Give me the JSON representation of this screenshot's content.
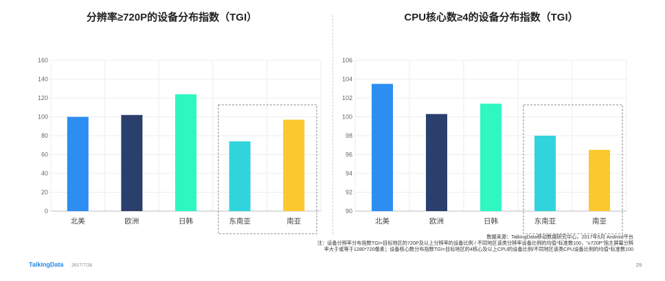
{
  "chart_data": [
    {
      "type": "bar",
      "title": "分辨率≥720P的设备分布指数（TGI）",
      "categories": [
        "北美",
        "欧洲",
        "日韩",
        "东南亚",
        "南亚"
      ],
      "values": [
        100,
        102,
        124,
        74,
        97
      ],
      "colors": [
        "#2b8ef0",
        "#2b3f6c",
        "#2ef7c0",
        "#31d4dc",
        "#fbc92e"
      ],
      "ylim": [
        0,
        160
      ],
      "yticks": [
        "0",
        "20",
        "40",
        "60",
        "80",
        "100",
        "120",
        "140",
        "160"
      ],
      "grid": true,
      "highlight_categories": [
        "东南亚",
        "南亚"
      ]
    },
    {
      "type": "bar",
      "title": "CPU核心数≥4的设备分布指数（TGI）",
      "categories": [
        "北美",
        "欧洲",
        "日韩",
        "东南亚",
        "南亚"
      ],
      "values": [
        103.5,
        100.3,
        101.4,
        98,
        96.5
      ],
      "colors": [
        "#2b8ef0",
        "#2b3f6c",
        "#2ef7c0",
        "#31d4dc",
        "#fbc92e"
      ],
      "ylim": [
        90,
        106
      ],
      "yticks": [
        "90",
        "92",
        "94",
        "96",
        "98",
        "100",
        "102",
        "104",
        "106"
      ],
      "grid": true,
      "highlight_categories": [
        "东南亚",
        "南亚"
      ]
    }
  ],
  "footer": {
    "source": "数据来源：TalkingData移动数据研究中心，2017年5月 Android平台",
    "note_line1": "注：设备分辨率分布指数TGI=目标地区的720P及以上分辨率的设备比例 / 不同地区该类分辨率设备比例的均值*标准数100，“≥720P”指主屏幕分辨",
    "note_line2": "率大于或等于1280*720像素；设备核心数分布指数TGI=目标地区的4核心及以上CPU的设备比例/不同地区该类CPU设备比例的均值*标准数100",
    "brand": "TalkingData",
    "date": "2017/7/26",
    "page_number": "29"
  }
}
